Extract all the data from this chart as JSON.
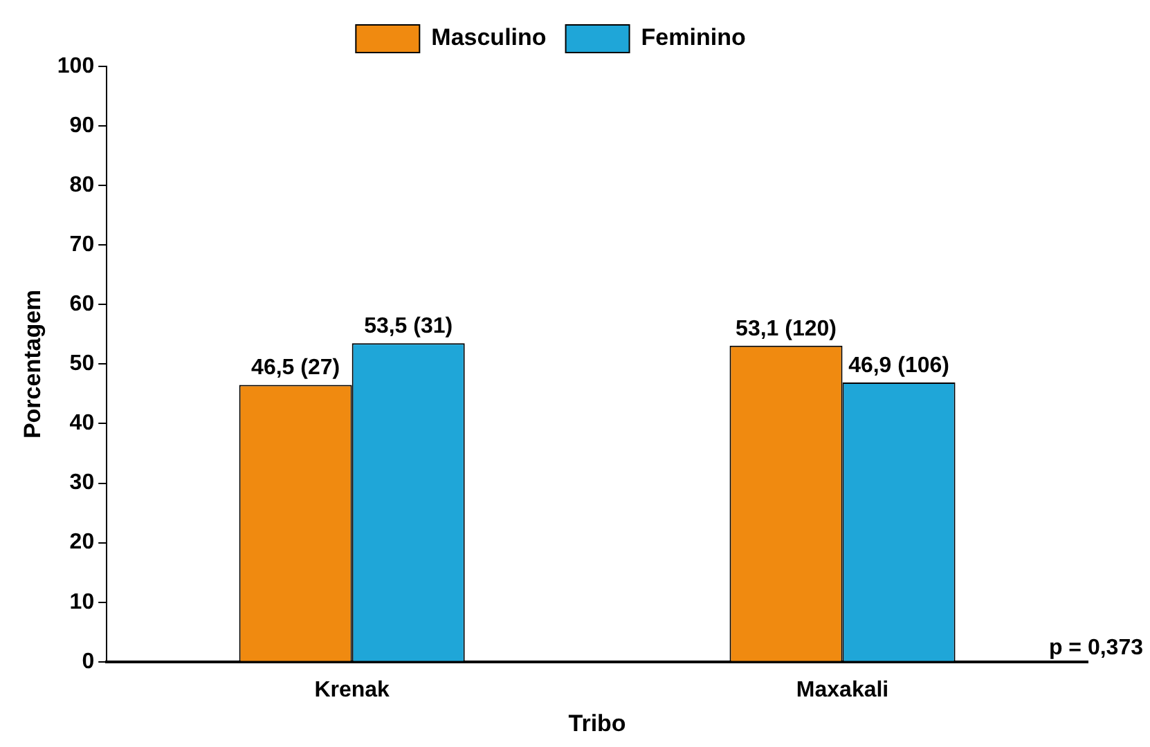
{
  "chart_data": {
    "type": "bar",
    "xlabel": "Tribo",
    "ylabel": "Porcentagem",
    "categories": [
      "Krenak",
      "Maxakali"
    ],
    "series": [
      {
        "name": "Masculino",
        "color": "#f08a10",
        "values": [
          46.5,
          53.1
        ],
        "value_labels": [
          "46,5 (27)",
          "53,1 (120)"
        ]
      },
      {
        "name": "Feminino",
        "color": "#1fa6d8",
        "values": [
          53.5,
          46.9
        ],
        "value_labels": [
          "53,5 (31)",
          "46,9 (106)"
        ]
      }
    ],
    "ylim": [
      0,
      100
    ],
    "yticks": [
      0,
      10,
      20,
      30,
      40,
      50,
      60,
      70,
      80,
      90,
      100
    ],
    "grid": false,
    "legend": "top",
    "annotations": [
      "p = 0,373"
    ]
  }
}
